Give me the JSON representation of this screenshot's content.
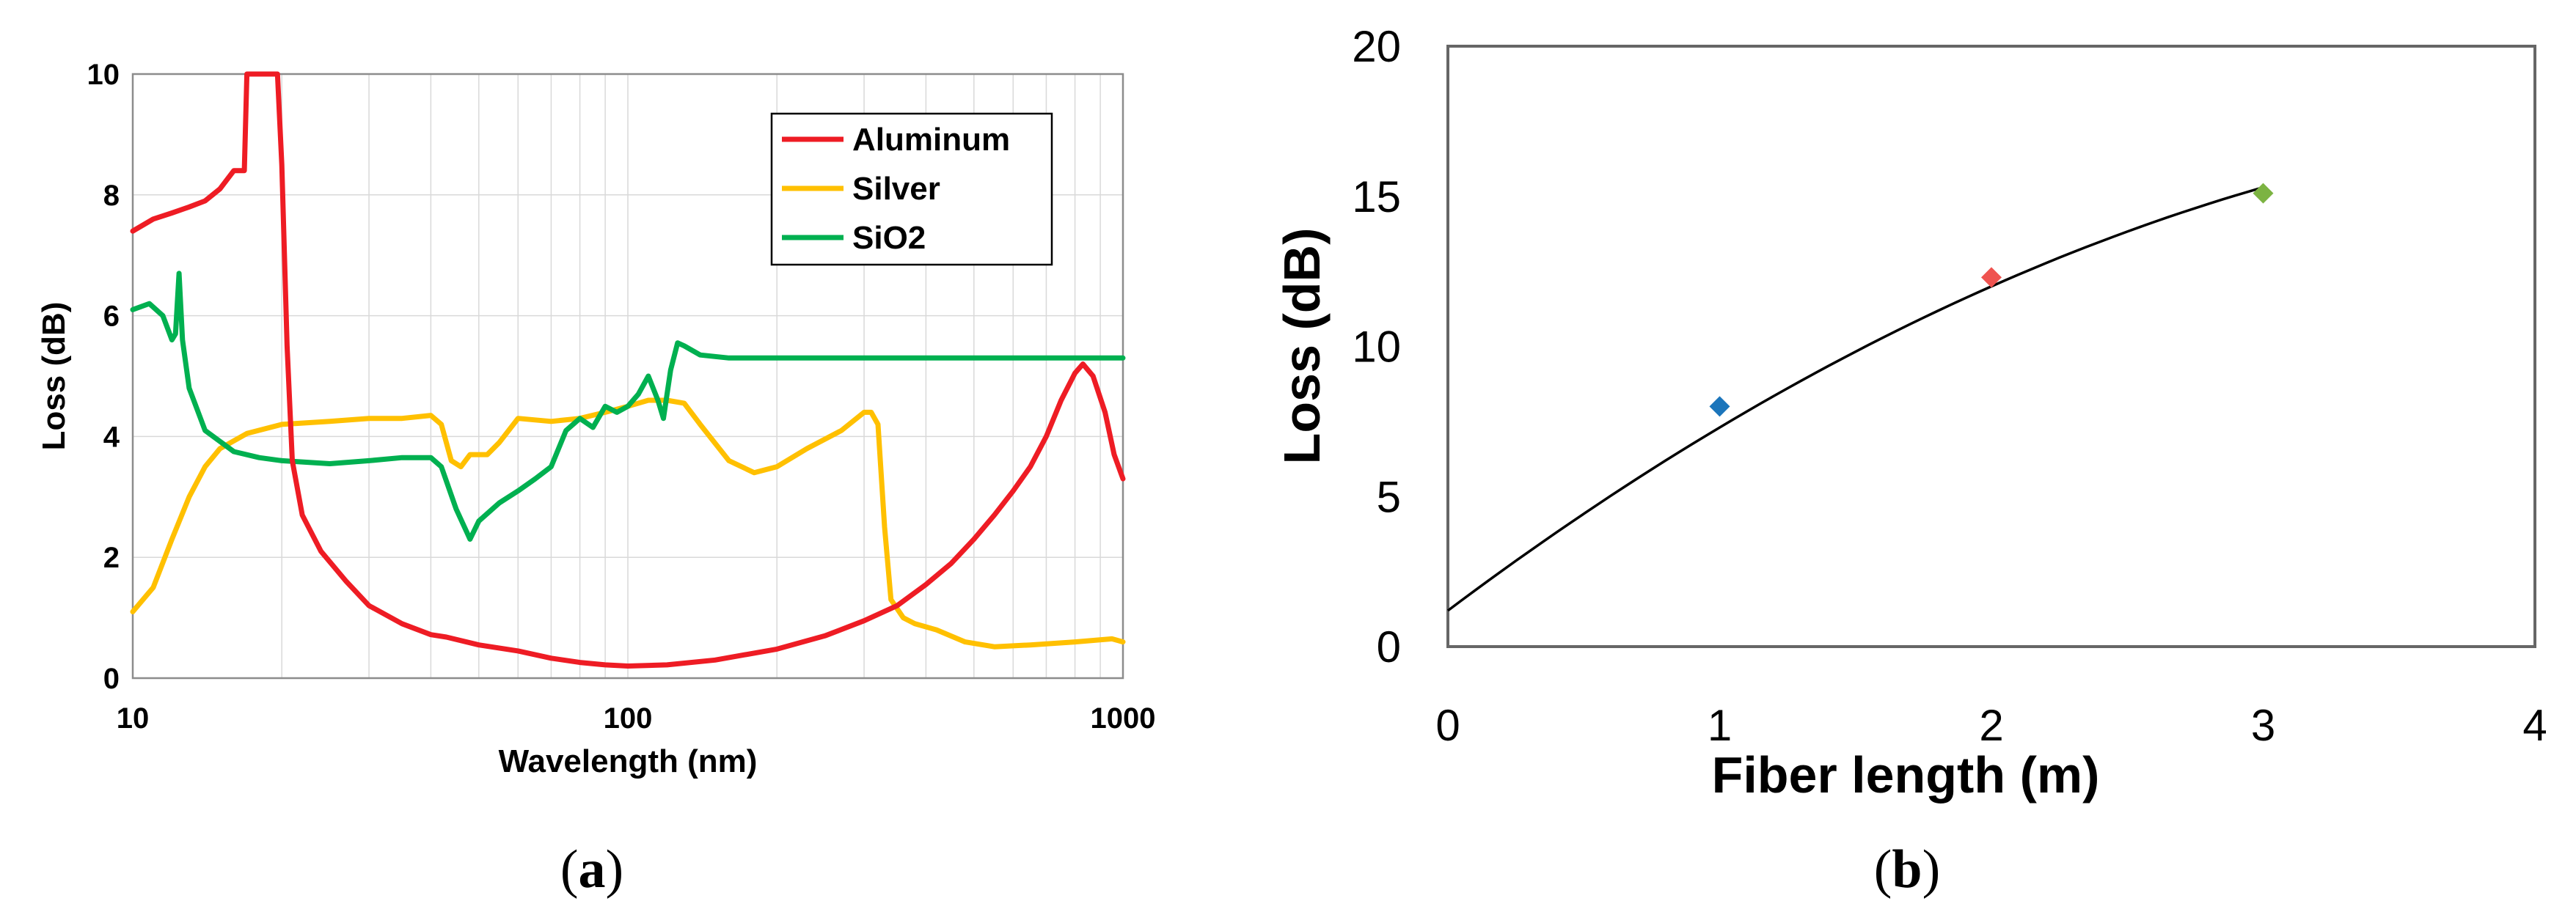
{
  "chart_data": [
    {
      "id": "a",
      "type": "line",
      "panel_label": "a",
      "xlabel": "Wavelength (nm)",
      "ylabel": "Loss (dB)",
      "xscale": "log",
      "xlim": [
        10,
        1000
      ],
      "ylim": [
        0,
        10
      ],
      "grid": true,
      "xticks": [
        10,
        100,
        1000
      ],
      "xtick_labels": [
        "10",
        "100",
        "1000"
      ],
      "yticks": [
        0,
        2,
        4,
        6,
        8,
        10
      ],
      "ytick_labels": [
        "0",
        "2",
        "4",
        "6",
        "8",
        "10"
      ],
      "legend_position": "top-right",
      "series": [
        {
          "name": "Aluminum",
          "color": "#ee1c24",
          "points": [
            [
              10,
              7.4
            ],
            [
              11,
              7.6
            ],
            [
              12,
              7.7
            ],
            [
              13,
              7.8
            ],
            [
              14,
              7.9
            ],
            [
              15,
              8.1
            ],
            [
              16,
              8.4
            ],
            [
              16.8,
              8.4
            ],
            [
              17.0,
              10
            ],
            [
              19.6,
              10
            ],
            [
              20,
              8.5
            ],
            [
              20.5,
              5.5
            ],
            [
              21,
              3.6
            ],
            [
              22,
              2.7
            ],
            [
              24,
              2.1
            ],
            [
              27,
              1.6
            ],
            [
              30,
              1.2
            ],
            [
              35,
              0.9
            ],
            [
              40,
              0.72
            ],
            [
              43,
              0.68
            ],
            [
              50,
              0.55
            ],
            [
              60,
              0.45
            ],
            [
              70,
              0.33
            ],
            [
              80,
              0.26
            ],
            [
              90,
              0.22
            ],
            [
              100,
              0.2
            ],
            [
              120,
              0.22
            ],
            [
              150,
              0.3
            ],
            [
              200,
              0.48
            ],
            [
              250,
              0.7
            ],
            [
              300,
              0.95
            ],
            [
              350,
              1.2
            ],
            [
              400,
              1.55
            ],
            [
              450,
              1.9
            ],
            [
              500,
              2.3
            ],
            [
              550,
              2.7
            ],
            [
              600,
              3.1
            ],
            [
              650,
              3.5
            ],
            [
              700,
              4.0
            ],
            [
              750,
              4.6
            ],
            [
              800,
              5.05
            ],
            [
              830,
              5.2
            ],
            [
              870,
              5.0
            ],
            [
              920,
              4.4
            ],
            [
              960,
              3.7
            ],
            [
              1000,
              3.3
            ]
          ]
        },
        {
          "name": "Silver",
          "color": "#ffc000",
          "points": [
            [
              10,
              1.1
            ],
            [
              11,
              1.5
            ],
            [
              12,
              2.3
            ],
            [
              13,
              3.0
            ],
            [
              14,
              3.5
            ],
            [
              15,
              3.8
            ],
            [
              17,
              4.05
            ],
            [
              20,
              4.2
            ],
            [
              25,
              4.25
            ],
            [
              30,
              4.3
            ],
            [
              35,
              4.3
            ],
            [
              40,
              4.35
            ],
            [
              42,
              4.2
            ],
            [
              44,
              3.6
            ],
            [
              46,
              3.5
            ],
            [
              48,
              3.7
            ],
            [
              52,
              3.7
            ],
            [
              55,
              3.9
            ],
            [
              60,
              4.3
            ],
            [
              70,
              4.25
            ],
            [
              80,
              4.3
            ],
            [
              90,
              4.4
            ],
            [
              100,
              4.5
            ],
            [
              110,
              4.6
            ],
            [
              120,
              4.6
            ],
            [
              130,
              4.55
            ],
            [
              140,
              4.2
            ],
            [
              160,
              3.6
            ],
            [
              180,
              3.4
            ],
            [
              200,
              3.5
            ],
            [
              230,
              3.8
            ],
            [
              270,
              4.1
            ],
            [
              300,
              4.4
            ],
            [
              310,
              4.4
            ],
            [
              320,
              4.2
            ],
            [
              330,
              2.5
            ],
            [
              340,
              1.3
            ],
            [
              360,
              1.0
            ],
            [
              380,
              0.9
            ],
            [
              420,
              0.8
            ],
            [
              480,
              0.6
            ],
            [
              550,
              0.52
            ],
            [
              650,
              0.55
            ],
            [
              800,
              0.6
            ],
            [
              950,
              0.65
            ],
            [
              1000,
              0.6
            ]
          ]
        },
        {
          "name": "SiO2",
          "color": "#00b050",
          "points": [
            [
              10,
              6.1
            ],
            [
              10.8,
              6.2
            ],
            [
              11.5,
              6.0
            ],
            [
              12,
              5.6
            ],
            [
              12.2,
              5.7
            ],
            [
              12.4,
              6.7
            ],
            [
              12.6,
              5.6
            ],
            [
              13,
              4.8
            ],
            [
              14,
              4.1
            ],
            [
              16,
              3.75
            ],
            [
              18,
              3.65
            ],
            [
              20,
              3.6
            ],
            [
              25,
              3.55
            ],
            [
              30,
              3.6
            ],
            [
              35,
              3.65
            ],
            [
              40,
              3.65
            ],
            [
              42,
              3.5
            ],
            [
              45,
              2.8
            ],
            [
              48,
              2.3
            ],
            [
              50,
              2.6
            ],
            [
              55,
              2.9
            ],
            [
              60,
              3.1
            ],
            [
              65,
              3.3
            ],
            [
              70,
              3.5
            ],
            [
              75,
              4.1
            ],
            [
              80,
              4.3
            ],
            [
              85,
              4.15
            ],
            [
              90,
              4.5
            ],
            [
              95,
              4.4
            ],
            [
              100,
              4.5
            ],
            [
              105,
              4.7
            ],
            [
              110,
              5.0
            ],
            [
              115,
              4.6
            ],
            [
              118,
              4.3
            ],
            [
              122,
              5.1
            ],
            [
              126,
              5.55
            ],
            [
              130,
              5.5
            ],
            [
              140,
              5.35
            ],
            [
              160,
              5.3
            ],
            [
              200,
              5.3
            ],
            [
              300,
              5.3
            ],
            [
              500,
              5.3
            ],
            [
              700,
              5.3
            ],
            [
              1000,
              5.3
            ]
          ]
        }
      ]
    },
    {
      "id": "b",
      "type": "scatter",
      "panel_label": "b",
      "xlabel": "Fiber length (m)",
      "ylabel": "Loss (dB)",
      "xlim": [
        0,
        4
      ],
      "ylim": [
        0,
        20
      ],
      "grid": false,
      "xticks": [
        0,
        1,
        2,
        3,
        4
      ],
      "xtick_labels": [
        "0",
        "1",
        "2",
        "3",
        "4"
      ],
      "yticks": [
        0,
        5,
        10,
        15,
        20
      ],
      "ytick_labels": [
        "0",
        "5",
        "10",
        "15",
        "20"
      ],
      "points": [
        {
          "x": 1,
          "y": 8.0,
          "color": "#1b75bb"
        },
        {
          "x": 2,
          "y": 12.3,
          "color": "#ef5350"
        },
        {
          "x": 3,
          "y": 15.1,
          "color": "#7cb342"
        }
      ],
      "trendline": {
        "type": "polynomial",
        "color": "#000000",
        "x_range": [
          0,
          3
        ],
        "coefficients": [
          1.2,
          6.8,
          -0.7
        ]
      }
    }
  ],
  "captions": {
    "a": {
      "open": "(",
      "letter": "a",
      "close": ")"
    },
    "b": {
      "open": "(",
      "letter": "b",
      "close": ")"
    }
  }
}
